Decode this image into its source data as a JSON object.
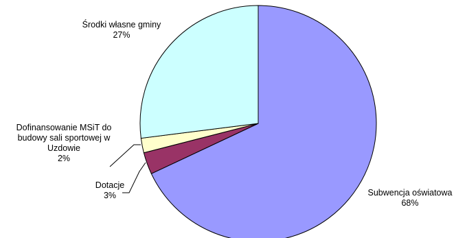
{
  "chart_data": {
    "type": "pie",
    "slices": [
      {
        "label": "Subwencja oświatowa",
        "percent_label": "68%",
        "value": 68,
        "color": "#9999ff"
      },
      {
        "label": "Dotacje",
        "percent_label": "3%",
        "value": 3,
        "color": "#993366"
      },
      {
        "label": "Dofinansowanie MSiT do budowy sali sportowej w Uzdowie",
        "percent_label": "2%",
        "value": 2,
        "color": "#ffffcc"
      },
      {
        "label": "Środki własne gminy",
        "percent_label": "27%",
        "value": 27,
        "color": "#ccffff"
      }
    ],
    "label_lines": {
      "dofinansowanie": [
        "Dofinansowanie MSiT do",
        "budowy sali sportowej w",
        "Uzdowie"
      ]
    }
  }
}
